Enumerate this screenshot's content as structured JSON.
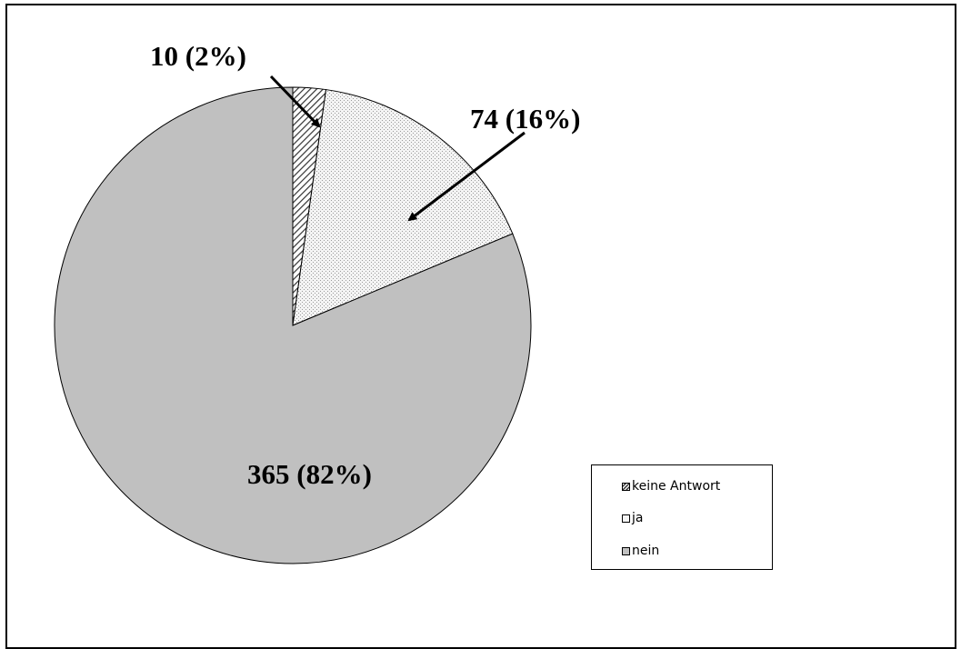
{
  "chart_data": {
    "type": "pie",
    "categories": [
      "keine Antwort",
      "ja",
      "nein"
    ],
    "values": [
      10,
      74,
      365
    ],
    "percentages": [
      2,
      16,
      82
    ],
    "data_labels": [
      "10 (2%)",
      "74 (16%)",
      "365 (82%)"
    ],
    "legend": [
      "keine Antwort",
      "ja",
      "nein"
    ],
    "legend_position": "bottom-right",
    "colors": [
      "#9a9a9a",
      "#f2f2f2",
      "#c0c0c0"
    ]
  }
}
